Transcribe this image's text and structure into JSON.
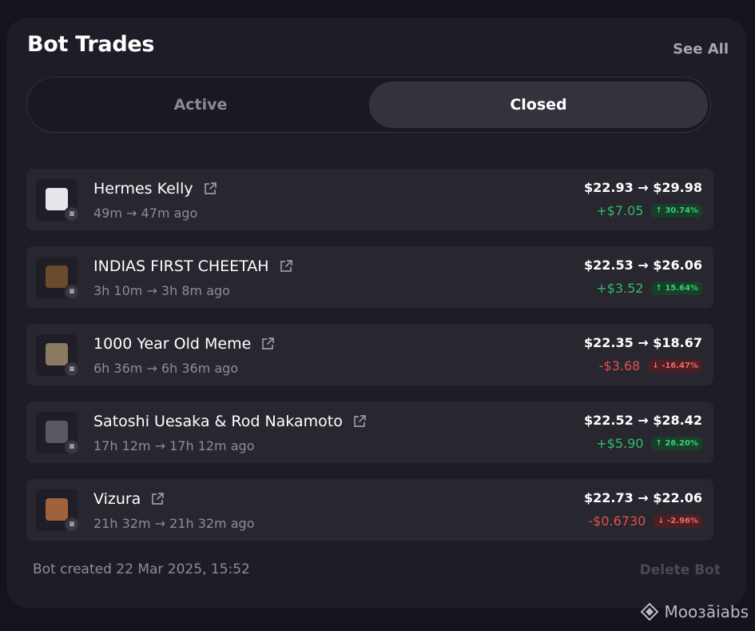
{
  "header": {
    "title": "Bot Trades",
    "see_all": "See All"
  },
  "tabs": [
    {
      "label": "Active",
      "selected": false
    },
    {
      "label": "Closed",
      "selected": true
    }
  ],
  "trades": [
    {
      "name": "Hermes Kelly",
      "time": "49m → 47m ago",
      "price": "$22.93 → $29.98",
      "pnl": "+$7.05",
      "pct": "↑ 30.74%",
      "direction": "up",
      "chain_badge": "≡",
      "thumb_icon": "handbag-icon",
      "thumb_color": "#e8e6ea"
    },
    {
      "name": "INDIAS FIRST CHEETAH",
      "time": "3h 10m → 3h 8m ago",
      "price": "$22.53 → $26.06",
      "pnl": "+$3.52",
      "pct": "↑ 15.64%",
      "direction": "up",
      "chain_badge": "≡",
      "thumb_icon": "cheetah-image",
      "thumb_color": "#6b4a2e"
    },
    {
      "name": "1000 Year Old Meme",
      "time": "6h 36m → 6h 36m ago",
      "price": "$22.35 → $18.67",
      "pnl": "-$3.68",
      "pct": "↓ -16.47%",
      "direction": "down",
      "chain_badge": "≡",
      "thumb_icon": "ancient-carving-image",
      "thumb_color": "#8a7a62"
    },
    {
      "name": "Satoshi Uesaka & Rod Nakamoto",
      "time": "17h 12m → 17h 12m ago",
      "price": "$22.52 → $28.42",
      "pnl": "+$5.90",
      "pct": "↑ 26.20%",
      "direction": "up",
      "chain_badge": "≡",
      "thumb_icon": "portrait-image",
      "thumb_color": "#5a5860"
    },
    {
      "name": "Vizura",
      "time": "21h 32m → 21h 32m ago",
      "price": "$22.73 → $22.06",
      "pnl": "-$0.6730",
      "pct": "↓ -2.96%",
      "direction": "down",
      "chain_badge": "≡",
      "thumb_icon": "pyramid-image",
      "thumb_color": "#a0623a"
    }
  ],
  "footer": {
    "created": "Bot created 22 Mar 2025, 15:52",
    "delete": "Delete Bot"
  },
  "watermark": {
    "text": "Mooзāiabs"
  },
  "colors": {
    "up": "#2fbd68",
    "down": "#e0524c",
    "panel": "#1e1c26",
    "row": "#28262f"
  }
}
